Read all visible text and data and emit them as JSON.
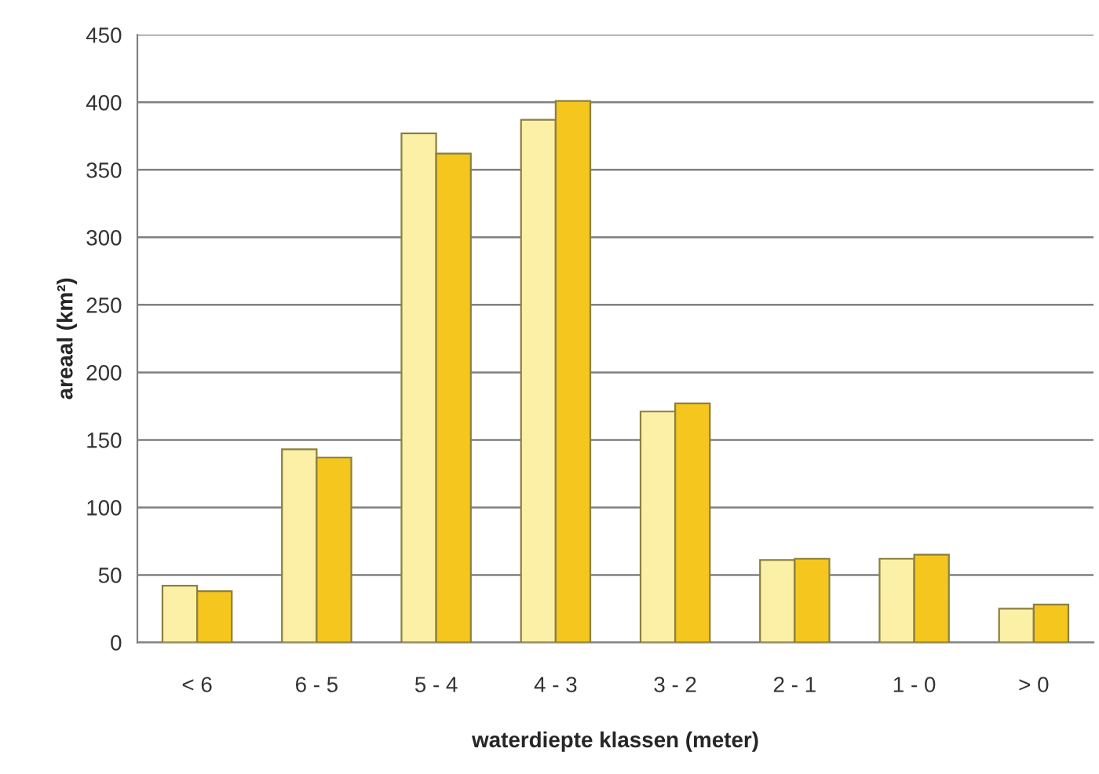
{
  "chart_data": {
    "type": "bar",
    "xlabel": "waterdiepte klassen (meter)",
    "ylabel": "areaal (km²)",
    "categories": [
      "< 6",
      "6 - 5",
      "5 - 4",
      "4 - 3",
      "3 - 2",
      "2 - 1",
      "1 - 0",
      "> 0"
    ],
    "series": [
      {
        "color": "#fbf0a6",
        "values": [
          42,
          143,
          377,
          387,
          171,
          61,
          62,
          25
        ]
      },
      {
        "color": "#f4c61e",
        "values": [
          38,
          137,
          362,
          401,
          177,
          62,
          65,
          28
        ]
      }
    ],
    "ylim": [
      0,
      450
    ],
    "yticks": [
      0,
      50,
      100,
      150,
      200,
      250,
      300,
      350,
      400,
      450
    ],
    "grid": "y"
  }
}
